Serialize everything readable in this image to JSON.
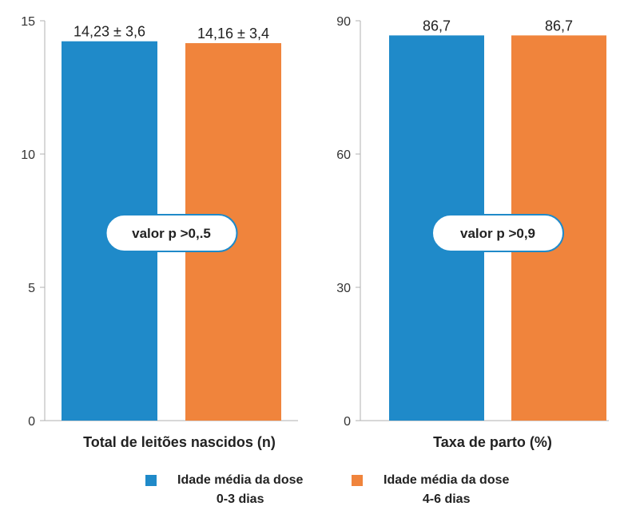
{
  "chart_data": [
    {
      "type": "bar",
      "title": "",
      "xlabel": "Total de leitões nascidos (n)",
      "ylabel": "",
      "ylim": [
        0,
        15
      ],
      "yticks": [
        "0",
        "5",
        "10",
        "15"
      ],
      "grid": false,
      "series": [
        {
          "name": "Idade média da dose 0-3 dias",
          "values": [
            14.23
          ],
          "color": "#1f8ac9",
          "label": "14,23 ± 3,6"
        },
        {
          "name": "Idade média da dose 4-6 dias",
          "values": [
            14.16
          ],
          "color": "#f0843c",
          "label": "14,16 ± 3,4"
        }
      ],
      "annotation": "valor p >0,.5"
    },
    {
      "type": "bar",
      "title": "",
      "xlabel": "Taxa de parto (%)",
      "ylabel": "",
      "ylim": [
        0,
        90
      ],
      "yticks": [
        "0",
        "30",
        "60",
        "90"
      ],
      "grid": false,
      "series": [
        {
          "name": "Idade média da dose 0-3 dias",
          "values": [
            86.7
          ],
          "color": "#1f8ac9",
          "label": "86,7"
        },
        {
          "name": "Idade média da dose 4-6 dias",
          "values": [
            86.7
          ],
          "color": "#f0843c",
          "label": "86,7"
        }
      ],
      "annotation": "valor p >0,9"
    }
  ],
  "legend": {
    "placement": "bottom",
    "items": [
      {
        "label": "Idade média da dose\n0-3 dias",
        "color": "#1f8ac9"
      },
      {
        "label": "Idade média da dose\n4-6 dias",
        "color": "#f0843c"
      }
    ]
  }
}
